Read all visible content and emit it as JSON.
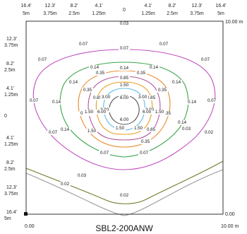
{
  "chart_data": {
    "type": "contour",
    "title": "SBL2-200ANW",
    "x_ticks": [
      {
        "ft": "16.4'",
        "m": "5m"
      },
      {
        "ft": "12.3'",
        "m": "3.75m"
      },
      {
        "ft": "8.2'",
        "m": "2.5m"
      },
      {
        "ft": "4.1'",
        "m": "1.25m"
      },
      {
        "ft": "",
        "m": "0"
      },
      {
        "ft": "4.1'",
        "m": "1.25m"
      },
      {
        "ft": "8.2'",
        "m": "2.5m"
      },
      {
        "ft": "12.3'",
        "m": "3.75m"
      },
      {
        "ft": "16.4'",
        "m": "5m"
      }
    ],
    "y_ticks": [
      {
        "ft": "12.3'",
        "m": "3.75m"
      },
      {
        "ft": "8.2'",
        "m": "2.5m"
      },
      {
        "ft": "4.1'",
        "m": "1.25m"
      },
      {
        "ft": "",
        "m": "0"
      },
      {
        "ft": "4.1'",
        "m": "1.25m"
      },
      {
        "ft": "8.2'",
        "m": "2.5m"
      },
      {
        "ft": "12.3'",
        "m": "3.75m"
      },
      {
        "ft": "16.4'",
        "m": "5m"
      }
    ],
    "scale_labels": {
      "bottom_left": "0.00",
      "bottom_right": "10.00 m",
      "right_top": "10.00 m",
      "right_bottom": "0.00"
    },
    "x_range_m": [
      -5,
      5
    ],
    "y_range_m": [
      -5,
      5
    ],
    "levels": [
      {
        "value": 0.02,
        "color": "#9a9a9a",
        "labels": [
          "0.02",
          "0.02",
          "0.02"
        ]
      },
      {
        "value": 0.03,
        "color": "#6a7d2a",
        "labels": [
          "0.03",
          "0.03",
          "0.03"
        ]
      },
      {
        "value": 0.07,
        "color": "#c04fc0",
        "labels": [
          "0.07",
          "0.07",
          "0.07",
          "0.07",
          "0.07",
          "0.07",
          "0.07",
          "0.07",
          "0.07",
          "0.07"
        ]
      },
      {
        "value": 0.14,
        "color": "#3aa64a",
        "labels": [
          "0.14",
          "0.14",
          "0.14",
          "0.14",
          "0.14",
          "0.14",
          "0.14",
          "0.14",
          "0.14"
        ]
      },
      {
        "value": 0.35,
        "color": "#e88a2a",
        "labels": [
          "0.35",
          "0.35",
          "0.35",
          "0.35",
          "0.35",
          "0.35",
          "0.35"
        ]
      },
      {
        "value": 0.85,
        "color": "#b3559a",
        "labels": [
          "0.85",
          "0.85",
          "0.85",
          "0.85"
        ]
      },
      {
        "value": 1.5,
        "color": "#e8a020",
        "labels": [
          "1.50",
          "1.50",
          "1.50",
          "1.50",
          "1.50",
          "1.50"
        ]
      },
      {
        "value": 3.0,
        "color": "#5bbde0",
        "labels": [
          "3.00",
          "3.00",
          "3.00",
          "3.00"
        ]
      },
      {
        "value": 6.0,
        "color": "#555555",
        "labels": [
          "6.00",
          "6.00",
          "6.00",
          "6.00"
        ]
      }
    ]
  }
}
